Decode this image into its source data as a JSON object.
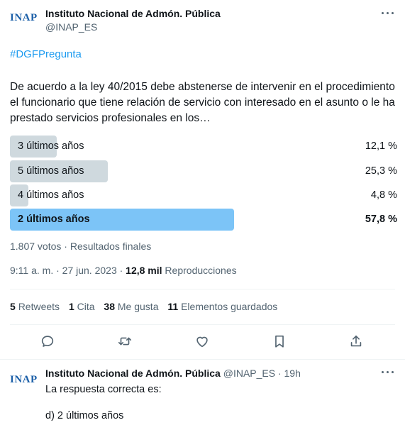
{
  "tweet": {
    "author_name": "Instituto Nacional de Admón. Pública",
    "author_handle": "@INAP_ES",
    "avatar_text": "INAP",
    "hashtag": "#DGFPregunta",
    "body": "De acuerdo a la ley 40/2015 debe abstenerse de intervenir en el procedimiento el funcionario que tiene relación de servicio con interesado en el asunto o le ha prestado servicios profesionales en los…",
    "poll": {
      "options": [
        {
          "label": "3 últimos años",
          "percent_text": "12,1 %",
          "fraction": 0.121,
          "winner": false
        },
        {
          "label": "5 últimos años",
          "percent_text": "25,3 %",
          "fraction": 0.253,
          "winner": false
        },
        {
          "label": "4 últimos años",
          "percent_text": "4,8 %",
          "fraction": 0.048,
          "winner": false
        },
        {
          "label": "2 últimos años",
          "percent_text": "57,8 %",
          "fraction": 0.578,
          "winner": true
        }
      ],
      "meta": "1.807 votos · Resultados finales"
    },
    "time": "9:11 a. m. · 27 jun. 2023 · ",
    "views_count": "12,8 mil",
    "views_label": " Reproducciones",
    "stats": {
      "retweets_count": "5",
      "retweets_label": "Retweets",
      "quotes_count": "1",
      "quotes_label": "Cita",
      "likes_count": "38",
      "likes_label": "Me gusta",
      "bookmarks_count": "11",
      "bookmarks_label": "Elementos guardados"
    },
    "actions": [
      "reply-icon",
      "retweet-icon",
      "like-icon",
      "bookmark-icon",
      "share-icon"
    ]
  },
  "reply": {
    "avatar_text": "INAP",
    "author_name": "Instituto Nacional de Admón. Pública",
    "meta": " @INAP_ES · 19h",
    "line1": "La respuesta correcta es:",
    "line2": "d) 2 últimos años"
  },
  "colors": {
    "accent": "#1d9bf0",
    "bar": "#cfd9de",
    "bar_winner": "#7cc4f7",
    "brand": "#1b5fa8"
  }
}
